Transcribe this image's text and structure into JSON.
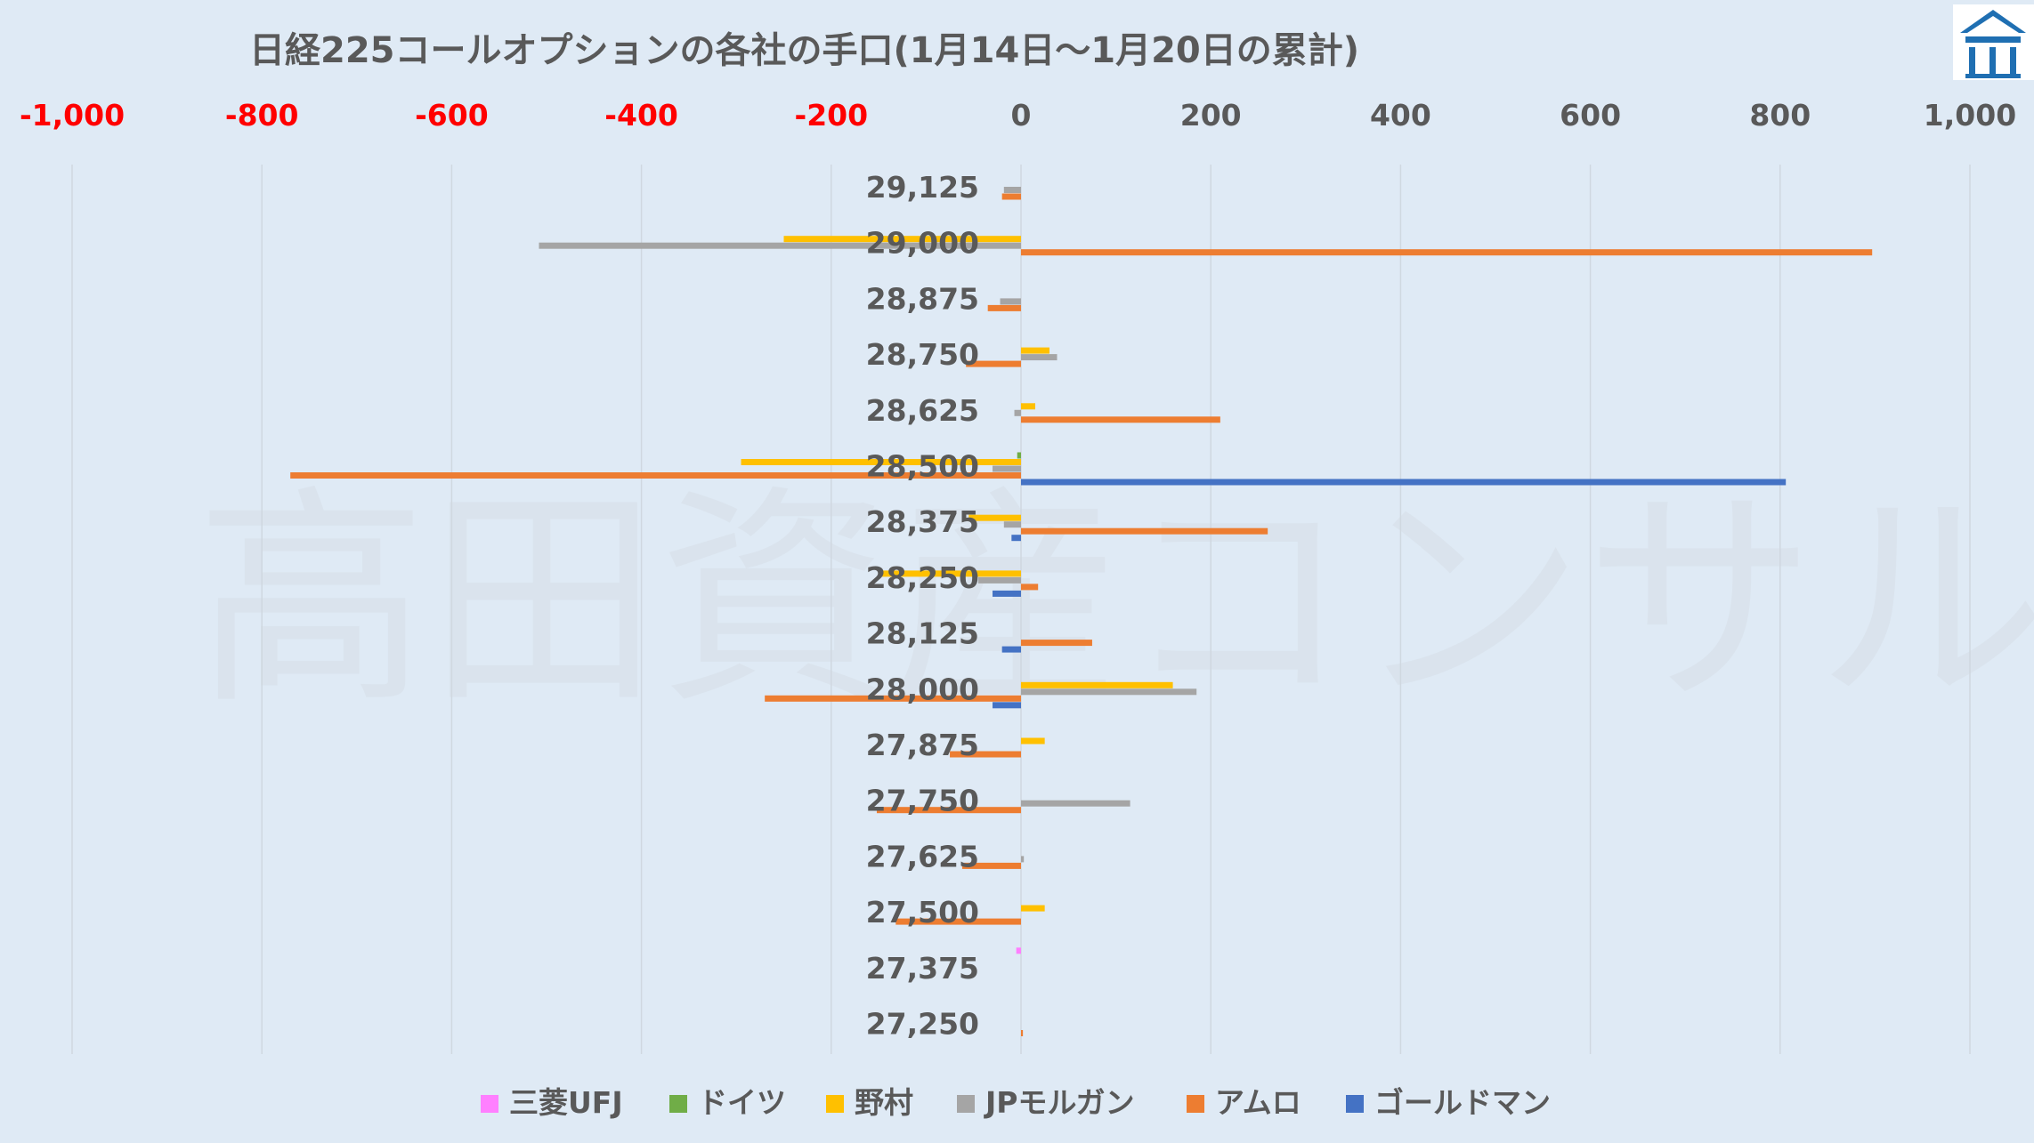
{
  "brand": {
    "logo": "house-logo",
    "color": "#1f6fb2"
  },
  "watermark_text": "高田資産コンサル",
  "chart_data": {
    "type": "bar",
    "orientation": "horizontal",
    "title": "日経225コールオプションの各社の手口(1月14日～1月20日の累計)",
    "xlim": [
      -1000,
      1000
    ],
    "xticks": [
      -1000,
      -800,
      -600,
      -400,
      -200,
      0,
      200,
      400,
      600,
      800,
      1000
    ],
    "xtick_labels": [
      "-1,000",
      "-800",
      "-600",
      "-400",
      "-200",
      "0",
      "200",
      "400",
      "600",
      "800",
      "1,000"
    ],
    "negative_tick_color": "#ff0000",
    "grid": true,
    "legend_position": "bottom",
    "categories": [
      "29,125",
      "29,000",
      "28,875",
      "28,750",
      "28,625",
      "28,500",
      "28,375",
      "28,250",
      "28,125",
      "28,000",
      "27,875",
      "27,750",
      "27,625",
      "27,500",
      "27,375",
      "27,250"
    ],
    "series": [
      {
        "name": "三菱UFJ",
        "color": "#ff80ff",
        "values": [
          0,
          0,
          0,
          0,
          0,
          0,
          0,
          0,
          0,
          0,
          0,
          0,
          0,
          0,
          -5,
          0
        ]
      },
      {
        "name": "ドイツ",
        "color": "#70ad47",
        "values": [
          0,
          0,
          0,
          0,
          0,
          -4,
          0,
          0,
          0,
          0,
          0,
          0,
          0,
          0,
          0,
          0
        ]
      },
      {
        "name": "野村",
        "color": "#ffc000",
        "values": [
          0,
          -250,
          0,
          30,
          15,
          -295,
          -55,
          -150,
          0,
          160,
          25,
          0,
          0,
          25,
          0,
          0
        ]
      },
      {
        "name": "JPモルガン",
        "color": "#a5a5a5",
        "values": [
          -18,
          -508,
          -22,
          38,
          -7,
          -30,
          -18,
          -45,
          0,
          185,
          0,
          115,
          3,
          0,
          0,
          0
        ]
      },
      {
        "name": "アムロ",
        "color": "#ed7d31",
        "values": [
          -20,
          897,
          -35,
          -58,
          210,
          -770,
          260,
          18,
          75,
          -270,
          -75,
          -152,
          -62,
          -132,
          0,
          2
        ]
      },
      {
        "name": "ゴールドマン",
        "color": "#4472c4",
        "values": [
          0,
          0,
          0,
          0,
          0,
          806,
          -10,
          -30,
          -20,
          -30,
          0,
          0,
          0,
          0,
          0,
          0
        ]
      }
    ]
  }
}
